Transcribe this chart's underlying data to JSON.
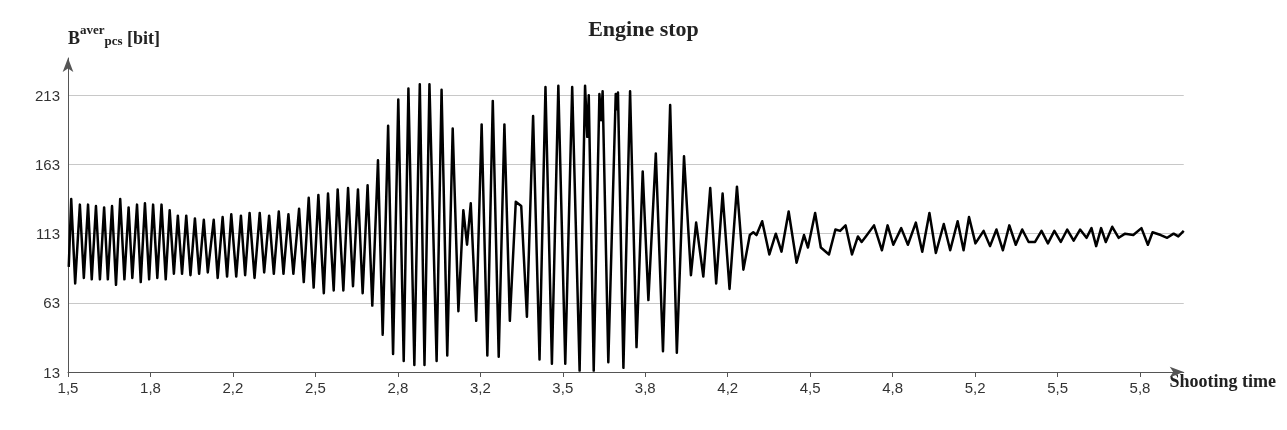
{
  "chart_data": {
    "type": "line",
    "title": "Engine stop",
    "xlabel": "Shooting time",
    "ylabel": "B$^{aver}$$_{pcs}$ [bit]",
    "xlim": [
      1.5,
      6.01
    ],
    "ylim": [
      13,
      240
    ],
    "xticks": [
      {
        "value": 1.5,
        "label": "1,5"
      },
      {
        "value": 1.8333,
        "label": "1,8"
      },
      {
        "value": 2.1667,
        "label": "2,2"
      },
      {
        "value": 2.5,
        "label": "2,5"
      },
      {
        "value": 2.8333,
        "label": "2,8"
      },
      {
        "value": 3.1667,
        "label": "3,2"
      },
      {
        "value": 3.5,
        "label": "3,5"
      },
      {
        "value": 3.8333,
        "label": "3,8"
      },
      {
        "value": 4.1667,
        "label": "4,2"
      },
      {
        "value": 4.5,
        "label": "4,5"
      },
      {
        "value": 4.8333,
        "label": "4,8"
      },
      {
        "value": 5.1667,
        "label": "5,2"
      },
      {
        "value": 5.5,
        "label": "5,5"
      },
      {
        "value": 5.8333,
        "label": "5,8"
      }
    ],
    "yticks": [
      13,
      63,
      113,
      163,
      213
    ],
    "grid": "y",
    "marker": "none",
    "line_style": "solid",
    "series": [
      {
        "color": "#000000",
        "x": [
          1.503,
          1.513,
          1.529,
          1.548,
          1.564,
          1.581,
          1.596,
          1.613,
          1.629,
          1.646,
          1.661,
          1.678,
          1.694,
          1.711,
          1.728,
          1.745,
          1.76,
          1.779,
          1.794,
          1.811,
          1.828,
          1.844,
          1.861,
          1.878,
          1.895,
          1.911,
          1.928,
          1.944,
          1.961,
          1.978,
          1.995,
          2.013,
          2.03,
          2.049,
          2.065,
          2.089,
          2.105,
          2.125,
          2.143,
          2.16,
          2.18,
          2.199,
          2.216,
          2.234,
          2.254,
          2.275,
          2.293,
          2.313,
          2.332,
          2.352,
          2.371,
          2.391,
          2.411,
          2.434,
          2.453,
          2.473,
          2.493,
          2.512,
          2.534,
          2.551,
          2.574,
          2.59,
          2.613,
          2.632,
          2.652,
          2.672,
          2.691,
          2.711,
          2.73,
          2.753,
          2.772,
          2.794,
          2.814,
          2.835,
          2.857,
          2.876,
          2.9,
          2.922,
          2.941,
          2.961,
          2.99,
          3.01,
          3.033,
          3.055,
          3.078,
          3.098,
          3.113,
          3.128,
          3.15,
          3.172,
          3.195,
          3.217,
          3.241,
          3.264,
          3.286,
          3.31,
          3.332,
          3.355,
          3.38,
          3.406,
          3.43,
          3.456,
          3.482,
          3.51,
          3.538,
          3.568,
          3.59,
          3.599,
          3.605,
          3.625,
          3.648,
          3.655,
          3.661,
          3.684,
          3.714,
          3.719,
          3.723,
          3.745,
          3.772,
          3.798,
          3.823,
          3.846,
          3.876,
          3.905,
          3.934,
          3.961,
          3.99,
          4.018,
          4.039,
          4.068,
          4.096,
          4.12,
          4.146,
          4.174,
          4.204,
          4.23,
          4.256,
          4.27,
          4.283,
          4.306,
          4.335,
          4.361,
          4.384,
          4.413,
          4.445,
          4.475,
          4.491,
          4.52,
          4.543,
          4.576,
          4.602,
          4.621,
          4.643,
          4.669,
          4.693,
          4.708,
          4.725,
          4.758,
          4.79,
          4.813,
          4.836,
          4.868,
          4.895,
          4.927,
          4.953,
          4.982,
          5.008,
          5.04,
          5.066,
          5.096,
          5.12,
          5.142,
          5.168,
          5.201,
          5.227,
          5.253,
          5.279,
          5.305,
          5.331,
          5.357,
          5.383,
          5.409,
          5.435,
          5.461,
          5.487,
          5.513,
          5.539,
          5.565,
          5.591,
          5.617,
          5.637,
          5.656,
          5.676,
          5.695,
          5.721,
          5.747,
          5.773,
          5.806,
          5.839,
          5.865,
          5.884,
          5.917,
          5.943,
          5.969,
          5.988,
          6.01
        ],
        "values": [
          89,
          138,
          77,
          134,
          81,
          134,
          80,
          133,
          80,
          132,
          80,
          133,
          76,
          138,
          80,
          132,
          81,
          134,
          78,
          135,
          80,
          134,
          81,
          134,
          80,
          130,
          84,
          126,
          84,
          126,
          83,
          124,
          84,
          123,
          85,
          123,
          81,
          125,
          82,
          127,
          82,
          126,
          83,
          128,
          81,
          128,
          85,
          126,
          84,
          129,
          84,
          127,
          84,
          131,
          78,
          139,
          74,
          141,
          70,
          142,
          72,
          145,
          72,
          146,
          75,
          145,
          70,
          148,
          61,
          166,
          40,
          191,
          26,
          210,
          21,
          218,
          18,
          221,
          18,
          221,
          21,
          217,
          25,
          189,
          57,
          130,
          105,
          135,
          50,
          192,
          25,
          209,
          24,
          192,
          50,
          136,
          133,
          53,
          198,
          22,
          219,
          19,
          220,
          19,
          219,
          14,
          220,
          183,
          213,
          14,
          214,
          195,
          216,
          20,
          214,
          203,
          215,
          16,
          216,
          31,
          158,
          65,
          171,
          28,
          206,
          27,
          169,
          83,
          121,
          82,
          146,
          77,
          142,
          73,
          147,
          87,
          112,
          114,
          112,
          122,
          98,
          113,
          100,
          129,
          92,
          112,
          103,
          128,
          103,
          98,
          116,
          115,
          119,
          98,
          111,
          107,
          111,
          119,
          101,
          119,
          105,
          117,
          105,
          121,
          100,
          128,
          99,
          120,
          101,
          122,
          101,
          125,
          106,
          115,
          104,
          116,
          101,
          119,
          105,
          116,
          107,
          107,
          115,
          106,
          115,
          107,
          116,
          108,
          116,
          110,
          117,
          104,
          117,
          107,
          118,
          110,
          113,
          112,
          117,
          105,
          114,
          112,
          110,
          113,
          111,
          115
        ]
      }
    ]
  }
}
